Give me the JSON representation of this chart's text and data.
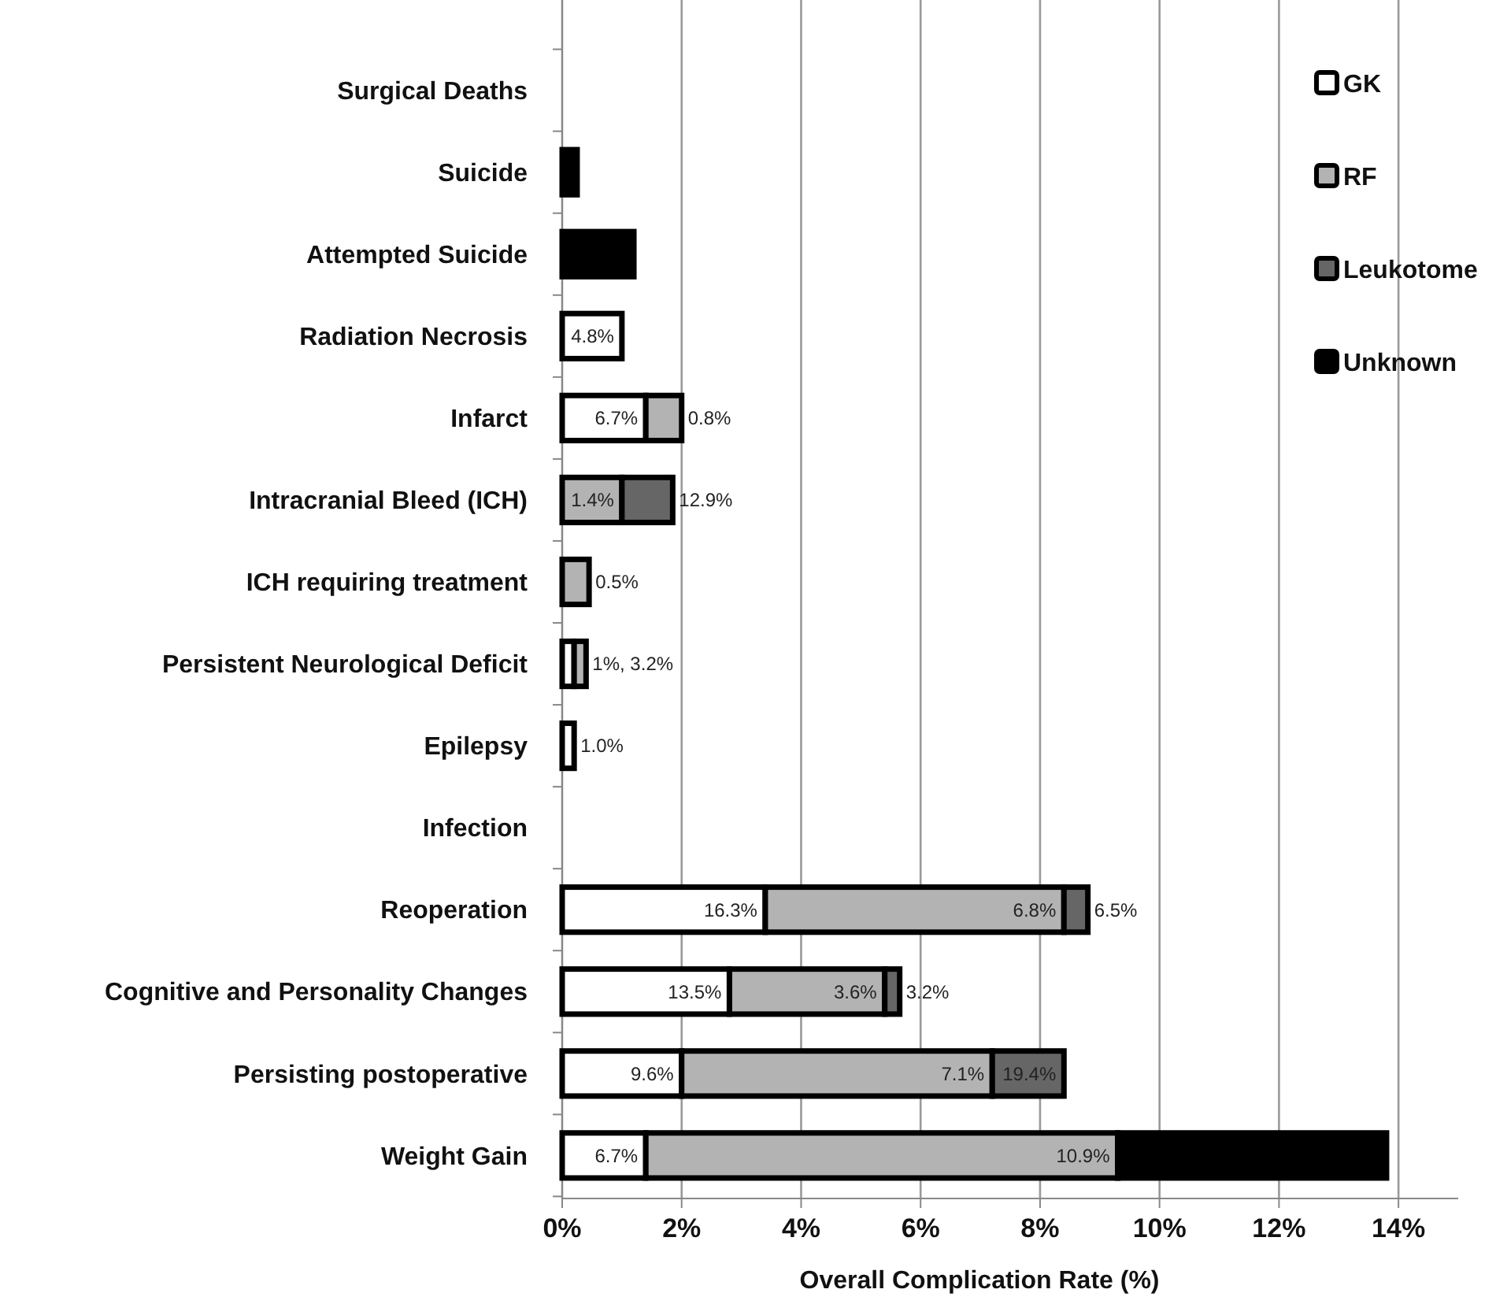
{
  "chart_data": {
    "type": "bar",
    "orientation": "horizontal",
    "stacked": true,
    "xlabel": "Overall Complication Rate (%)",
    "categories": [
      "Surgical Deaths",
      "Suicide",
      "Attempted Suicide",
      "Radiation Necrosis",
      "Infarct",
      "Intracranial Bleed (ICH)",
      "ICH requiring treatment",
      "Persistent Neurological Deficit",
      "Epilepsy",
      "Infection",
      "Reoperation",
      "Cognitive and Personality Changes",
      "Persisting postoperative",
      "Weight Gain"
    ],
    "series": [
      {
        "name": "GK",
        "color": "#ffffff",
        "values": [
          null,
          null,
          null,
          1.0,
          1.4,
          null,
          null,
          0.2,
          0.2,
          null,
          3.4,
          2.8,
          2.0,
          1.4
        ]
      },
      {
        "name": "RF",
        "color": "#b3b3b3",
        "values": [
          null,
          null,
          null,
          null,
          0.6,
          1.0,
          0.45,
          0.2,
          null,
          null,
          5.0,
          2.6,
          5.2,
          7.9
        ]
      },
      {
        "name": "Leukotome",
        "color": "#666666",
        "values": [
          null,
          null,
          null,
          null,
          null,
          0.85,
          null,
          null,
          null,
          null,
          0.4,
          0.25,
          1.2,
          null
        ]
      },
      {
        "name": "Unknown",
        "color": "#000000",
        "values": [
          null,
          0.25,
          1.2,
          null,
          null,
          null,
          null,
          null,
          null,
          null,
          null,
          null,
          null,
          4.5
        ]
      }
    ],
    "annotations": [
      {
        "text": "4.8%",
        "x": 1.0,
        "y": "Radiation Necrosis"
      },
      {
        "text": "6.7%",
        "x": 1.4,
        "y": "Infarct"
      },
      {
        "text": "0.8%",
        "x": 2.0,
        "y": "Infarct"
      },
      {
        "text": "1.4%",
        "x": 1.0,
        "y": "Intracranial Bleed (ICH)"
      },
      {
        "text": "12.9%",
        "x": 1.85,
        "y": "Intracranial Bleed (ICH)"
      },
      {
        "text": "0.5%",
        "x": 0.45,
        "y": "ICH requiring treatment"
      },
      {
        "text": "1%, 3.2%",
        "x": 0.4,
        "y": "Persistent Neurological Deficit"
      },
      {
        "text": "1.0%",
        "x": 0.2,
        "y": "Epilepsy"
      },
      {
        "text": "16.3%",
        "x": 3.4,
        "y": "Reoperation"
      },
      {
        "text": "6.8%",
        "x": 8.4,
        "y": "Reoperation"
      },
      {
        "text": "6.5%",
        "x": 8.8,
        "y": "Reoperation"
      },
      {
        "text": "13.5%",
        "x": 2.8,
        "y": "Cognitive and Personality Changes"
      },
      {
        "text": "3.6%",
        "x": 5.4,
        "y": "Cognitive and Personality Changes"
      },
      {
        "text": "3.2%",
        "x": 5.65,
        "y": "Cognitive and Personality Changes"
      },
      {
        "text": "9.6%",
        "x": 2.0,
        "y": "Persisting postoperative"
      },
      {
        "text": "7.1%",
        "x": 7.2,
        "y": "Persisting postoperative"
      },
      {
        "text": "19.4%",
        "x": 8.4,
        "y": "Persisting postoperative"
      },
      {
        "text": "6.7%",
        "x": 1.4,
        "y": "Weight Gain"
      },
      {
        "text": "10.9%",
        "x": 9.3,
        "y": "Weight Gain"
      }
    ],
    "xlim": [
      0,
      15
    ],
    "xticks": [
      {
        "value": 0,
        "label": "0%"
      },
      {
        "value": 2,
        "label": "2%"
      },
      {
        "value": 4,
        "label": "4%"
      },
      {
        "value": 6,
        "label": "6%"
      },
      {
        "value": 8,
        "label": "8%"
      },
      {
        "value": 10,
        "label": "10%"
      },
      {
        "value": 12,
        "label": "12%"
      },
      {
        "value": 14,
        "label": "14%"
      }
    ],
    "grid": "x",
    "legend": "top right"
  }
}
